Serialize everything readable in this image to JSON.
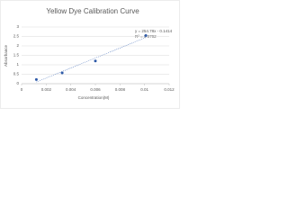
{
  "chart_data": {
    "type": "scatter",
    "title": "Yellow Dye Calibration Curve",
    "x_label": "Concentration(M)",
    "y_label": "Absorbance",
    "x": [
      0.0012,
      0.0033,
      0.006,
      0.0101
    ],
    "values": [
      0.22,
      0.57,
      1.2,
      2.55
    ],
    "color": "#2e5aa8",
    "trendline": true,
    "annotations": [
      "y = 254.78x - 0.1414",
      "R² = 0.9792"
    ],
    "xlim": [
      0,
      0.012
    ],
    "xticks": [
      0,
      0.002,
      0.004,
      0.006,
      0.008,
      0.01,
      0.012
    ],
    "ylim": [
      0,
      3
    ],
    "yticks": [
      0,
      0.5,
      1,
      1.5,
      2,
      2.5,
      3
    ],
    "grid": true
  }
}
